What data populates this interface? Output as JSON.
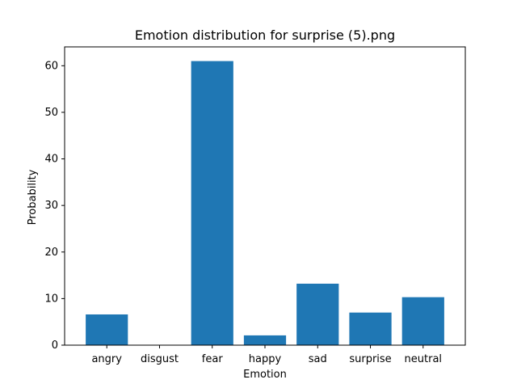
{
  "chart_data": {
    "type": "bar",
    "title": "Emotion distribution for surprise (5).png",
    "xlabel": "Emotion",
    "ylabel": "Probability",
    "categories": [
      "angry",
      "disgust",
      "fear",
      "happy",
      "sad",
      "surprise",
      "neutral"
    ],
    "values": [
      6.6,
      0.0,
      61.0,
      2.1,
      13.2,
      7.0,
      10.3
    ],
    "ylim": [
      0,
      64.05
    ],
    "yticks": [
      "0",
      "10",
      "20",
      "30",
      "40",
      "50",
      "60"
    ],
    "grid": false,
    "legend": "none",
    "bar_color": "#1f77b4"
  }
}
